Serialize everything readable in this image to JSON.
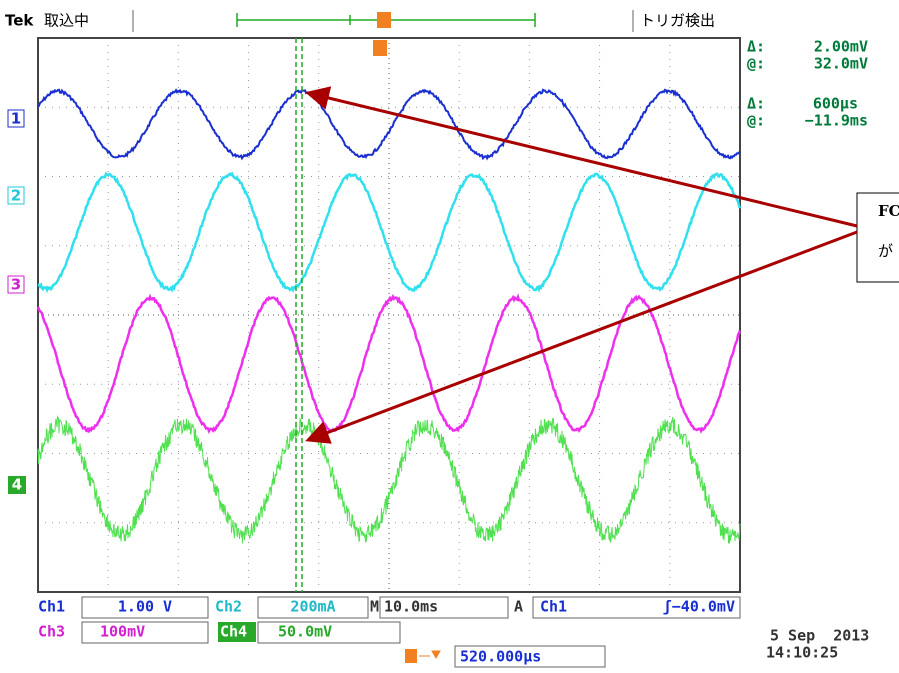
{
  "header": {
    "brand": "Tek",
    "status": "取込中",
    "trigger_status": "トリガ検出"
  },
  "cursors": [
    {
      "symbol": "Δ:",
      "value": "2.00mV"
    },
    {
      "symbol": "@:",
      "value": "32.0mV"
    },
    {
      "symbol": "Δ:",
      "value": "600µs"
    },
    {
      "symbol": "@:",
      "value": "−11.9ms"
    }
  ],
  "channel_markers": [
    "1",
    "2",
    "3",
    "4"
  ],
  "annotation": {
    "line1": "FC",
    "line2": "が"
  },
  "settings": {
    "ch1_label": "Ch1",
    "ch1_scale": "1.00 V",
    "ch2_label": "Ch2",
    "ch2_scale": "200mA",
    "ch3_label": "Ch3",
    "ch3_scale": "100mV",
    "ch4_label": "Ch4",
    "ch4_scale": "50.0mV",
    "time_label": "M",
    "time_scale": "10.0ms",
    "trigger_mode": "A",
    "trigger_source": "Ch1",
    "trigger_level": "ʃ−40.0mV",
    "position": "520.000µs"
  },
  "timestamp": {
    "date": "5 Sep  2013",
    "time": "14:10:25"
  }
}
